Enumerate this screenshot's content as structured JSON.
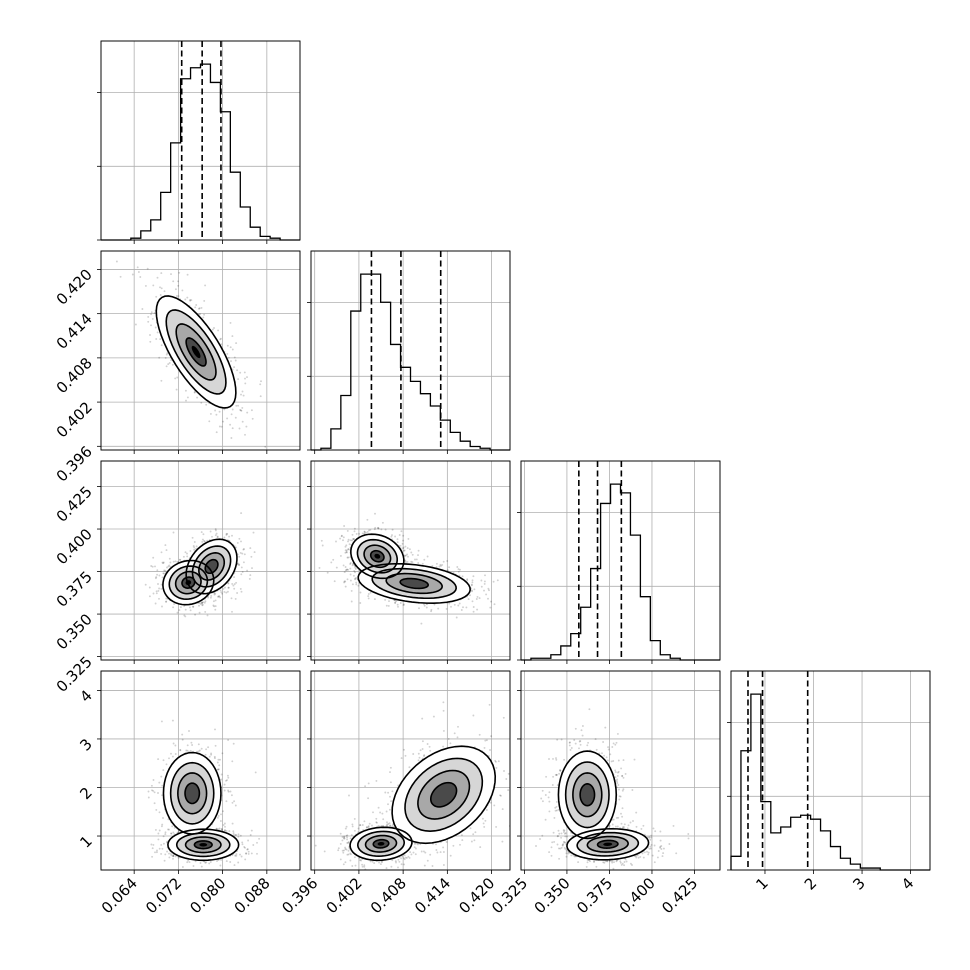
{
  "chart_data": {
    "type": "corner",
    "parameters": [
      {
        "range": [
          0.058,
          0.094
        ],
        "ticks": [
          0.064,
          0.072,
          0.08,
          0.088
        ],
        "tick_labels": [
          "0.064",
          "0.072",
          "0.080",
          "0.088"
        ]
      },
      {
        "range": [
          0.3955,
          0.4225
        ],
        "ticks": [
          0.396,
          0.402,
          0.408,
          0.414,
          0.42
        ],
        "tick_labels": [
          "0.396",
          "0.402",
          "0.408",
          "0.414",
          "0.420"
        ]
      },
      {
        "range": [
          0.323,
          0.44
        ],
        "ticks": [
          0.325,
          0.35,
          0.375,
          0.4,
          0.425
        ],
        "tick_labels": [
          "0.325",
          "0.350",
          "0.375",
          "0.400",
          "0.425"
        ]
      },
      {
        "range": [
          0.3,
          4.4
        ],
        "ticks": [
          1,
          2,
          3,
          4
        ],
        "tick_labels": [
          "1",
          "2",
          "3",
          "4"
        ]
      }
    ],
    "diagonal": [
      {
        "quantiles": [
          0.0726,
          0.0763,
          0.0797
        ],
        "edges": [
          0.058,
          0.094
        ],
        "counts": [
          0,
          0,
          0,
          1,
          5,
          11,
          26,
          53,
          88,
          94,
          96,
          86,
          70,
          37,
          18,
          7,
          2,
          1,
          0,
          0
        ]
      },
      {
        "quantiles": [
          0.4037,
          0.4077,
          0.4131
        ],
        "edges": [
          0.3955,
          0.4225
        ],
        "counts": [
          0,
          1,
          12,
          31,
          79,
          100,
          100,
          84,
          60,
          47,
          39,
          32,
          25,
          17,
          10,
          5,
          2,
          1,
          0,
          0
        ]
      },
      {
        "quantiles": [
          0.357,
          0.368,
          0.382
        ],
        "edges": [
          0.323,
          0.44
        ],
        "counts": [
          0,
          1,
          1,
          3,
          8,
          15,
          30,
          52,
          89,
          100,
          95,
          71,
          36,
          11,
          3,
          1,
          0,
          0,
          0,
          0
        ]
      },
      {
        "quantiles": [
          0.65,
          0.95,
          1.88
        ],
        "edges": [
          0.3,
          4.4
        ],
        "counts": [
          7,
          61,
          90,
          35,
          19,
          22,
          27,
          28,
          26,
          20,
          12,
          6,
          3,
          1,
          1,
          0,
          0,
          0,
          0,
          0
        ]
      }
    ],
    "pairs": [
      {
        "row": 1,
        "col": 0,
        "clusters": [
          {
            "x": 0.0752,
            "y": 0.4088,
            "sx": 0.0036,
            "sy": 0.0038,
            "rho": -0.72
          }
        ]
      },
      {
        "row": 2,
        "col": 0,
        "clusters": [
          {
            "x": 0.0738,
            "y": 0.3685,
            "sx": 0.0023,
            "sy": 0.0065,
            "rho": 0.1
          },
          {
            "x": 0.078,
            "y": 0.378,
            "sx": 0.0023,
            "sy": 0.008,
            "rho": 0.3
          }
        ]
      },
      {
        "row": 2,
        "col": 1,
        "clusters": [
          {
            "x": 0.4045,
            "y": 0.384,
            "sx": 0.0018,
            "sy": 0.0065,
            "rho": -0.2
          },
          {
            "x": 0.4095,
            "y": 0.368,
            "sx": 0.0038,
            "sy": 0.0058,
            "rho": -0.3
          }
        ]
      },
      {
        "row": 3,
        "col": 0,
        "clusters": [
          {
            "x": 0.0765,
            "y": 0.82,
            "sx": 0.0032,
            "sy": 0.16,
            "rho": 0.0
          },
          {
            "x": 0.0745,
            "y": 1.88,
            "sx": 0.0026,
            "sy": 0.42,
            "rho": 0.0
          }
        ]
      },
      {
        "row": 3,
        "col": 1,
        "clusters": [
          {
            "x": 0.405,
            "y": 0.84,
            "sx": 0.0021,
            "sy": 0.17,
            "rho": 0.1
          },
          {
            "x": 0.4135,
            "y": 1.85,
            "sx": 0.0035,
            "sy": 0.5,
            "rho": 0.35
          }
        ]
      },
      {
        "row": 3,
        "col": 2,
        "clusters": [
          {
            "x": 0.374,
            "y": 0.83,
            "sx": 0.012,
            "sy": 0.16,
            "rho": 0.1
          },
          {
            "x": 0.362,
            "y": 1.85,
            "sx": 0.0085,
            "sy": 0.45,
            "rho": 0.0
          }
        ]
      }
    ],
    "grid": true
  }
}
